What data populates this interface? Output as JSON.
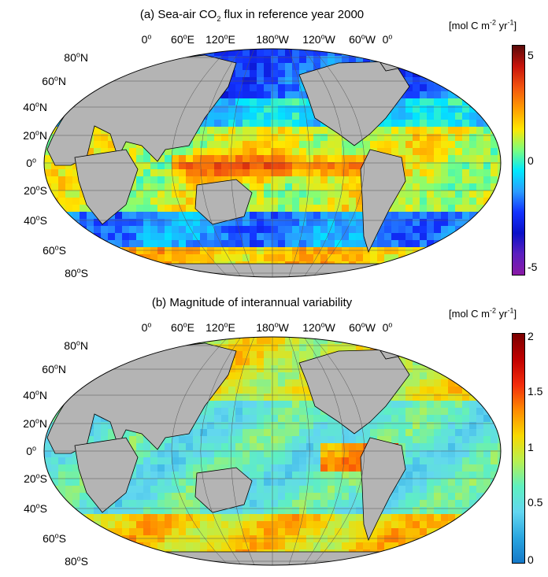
{
  "panel_a": {
    "title_pre": "(a) Sea-air CO",
    "title_sub": "2",
    "title_post": " flux in reference year 2000",
    "colorbar_ticks": [
      "5",
      "0",
      "-5"
    ],
    "colormap": [
      "#5a0a0a",
      "#c8140c",
      "#f2540f",
      "#ff9a00",
      "#ffe600",
      "#7cff7c",
      "#00e8ff",
      "#2a9cff",
      "#1232ff",
      "#0a10c8",
      "#5a1fbf",
      "#8a1aa6"
    ]
  },
  "panel_b": {
    "title": "(b) Magnitude of interannual variability",
    "colorbar_ticks": [
      "2",
      "1.5",
      "1",
      "0.5",
      "0"
    ],
    "colormap": [
      "#7a0000",
      "#c00000",
      "#f22c0c",
      "#ff8a00",
      "#f8d800",
      "#b8f050",
      "#5ef0c0",
      "#62d6f0",
      "#2aa6e0",
      "#1478c8"
    ]
  },
  "units": {
    "pre": "[mol C m",
    "exp1": "-2",
    "mid": " yr",
    "exp2": "-1",
    "post": "]"
  },
  "lon_labels": [
    {
      "deg": "0",
      "suf": ""
    },
    {
      "deg": "60",
      "suf": "E"
    },
    {
      "deg": "120",
      "suf": "E"
    },
    {
      "deg": "180",
      "suf": "W"
    },
    {
      "deg": "120",
      "suf": "W"
    },
    {
      "deg": "60",
      "suf": "W"
    },
    {
      "deg": "0",
      "suf": ""
    }
  ],
  "lat_labels": [
    {
      "deg": "80",
      "suf": "N"
    },
    {
      "deg": "60",
      "suf": "N"
    },
    {
      "deg": "40",
      "suf": "N"
    },
    {
      "deg": "20",
      "suf": "N"
    },
    {
      "deg": "0",
      "suf": ""
    },
    {
      "deg": "20",
      "suf": "S"
    },
    {
      "deg": "40",
      "suf": "S"
    },
    {
      "deg": "60",
      "suf": "S"
    },
    {
      "deg": "80",
      "suf": "S"
    }
  ],
  "colors": {
    "land": "#b4b4b4",
    "coast": "#000000",
    "grid": "#555555"
  }
}
